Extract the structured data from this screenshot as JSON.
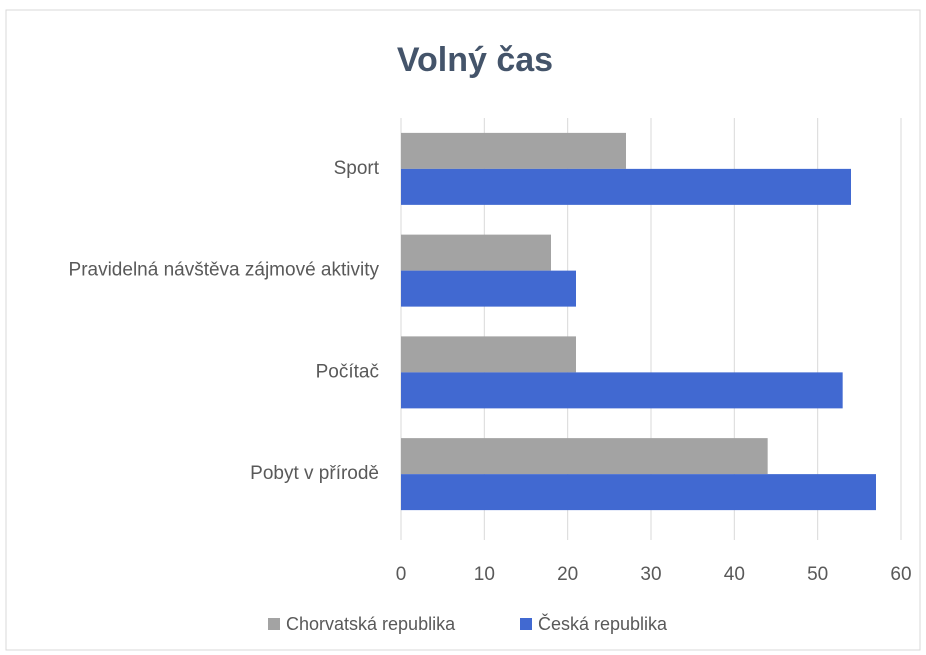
{
  "chart_data": {
    "type": "bar",
    "orientation": "horizontal",
    "title": "Volný čas",
    "categories": [
      "Sport",
      "Pravidelná návštěva zájmové aktivity",
      "Počítač",
      "Pobyt v přírodě"
    ],
    "series": [
      {
        "name": "Chorvatská republika",
        "color": "#a3a3a3",
        "values": [
          27,
          18,
          21,
          44
        ]
      },
      {
        "name": "Česká republika",
        "color": "#4169d1",
        "values": [
          54,
          21,
          53,
          57
        ]
      }
    ],
    "xlim": [
      0,
      60
    ],
    "xticks": [
      0,
      10,
      20,
      30,
      40,
      50,
      60
    ],
    "grid": true,
    "legend": "bottom"
  }
}
